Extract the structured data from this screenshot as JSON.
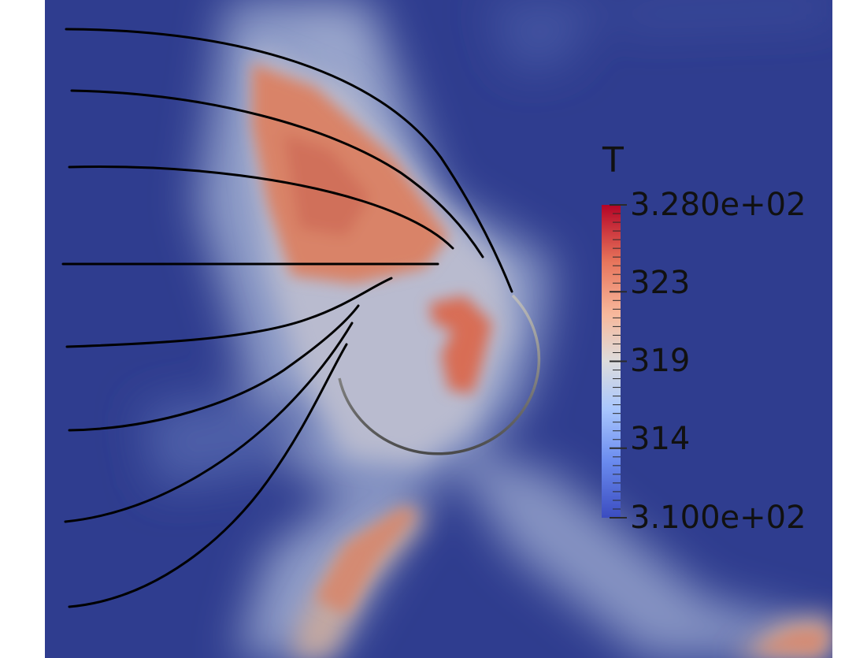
{
  "colorbar": {
    "title": "T",
    "max_label": "3.280e+02",
    "min_label": "3.100e+02",
    "tick_labels": [
      "323",
      "319",
      "314"
    ],
    "range": [
      310,
      328
    ],
    "tick_values": [
      323,
      319,
      314
    ],
    "colormap": "cool-to-warm",
    "colors": {
      "low": "#3b4cc0",
      "mid": "#dddddd",
      "high": "#b40426"
    }
  },
  "scene": {
    "background_field_color": "#2f3d8f",
    "streamline_color": "#000000",
    "body_outline_color": "#666666"
  }
}
